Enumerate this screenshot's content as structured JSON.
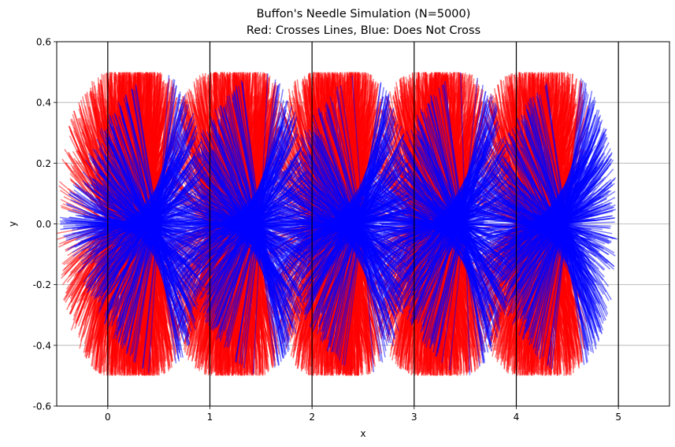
{
  "chart_data": {
    "type": "line",
    "title": "Buffon's Needle Simulation (N=5000)",
    "subtitle": "Red: Crosses Lines, Blue: Does Not Cross",
    "xlabel": "x",
    "ylabel": "y",
    "xlim": [
      -0.5,
      5.5
    ],
    "ylim": [
      -0.6,
      0.6
    ],
    "x_ticks": [
      "0",
      "1",
      "2",
      "3",
      "4",
      "5"
    ],
    "y_ticks": [
      "-0.6",
      "-0.4",
      "-0.2",
      "0.0",
      "0.2",
      "0.4",
      "0.6"
    ],
    "grid": "horizontal",
    "parallel_lines_x": [
      0,
      1,
      2,
      3,
      4,
      5
    ],
    "needle_count": 5000,
    "needle_length": 1,
    "needle_centers_x": [
      0,
      1,
      2,
      3,
      4
    ],
    "series": [
      {
        "name": "Crosses Lines",
        "color": "#ff0000"
      },
      {
        "name": "Does Not Cross",
        "color": "#0000ff"
      }
    ]
  }
}
